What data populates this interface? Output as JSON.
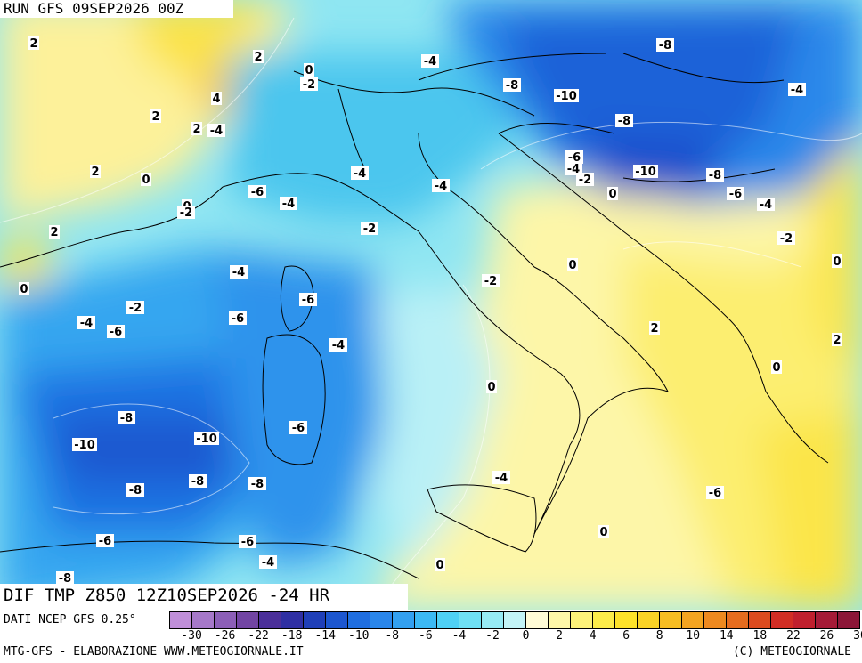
{
  "header": {
    "run_label": "RUN GFS 09SEP2026 00Z"
  },
  "map": {
    "variable_title": "DIF TMP Z850 12Z10SEP2026 -24 HR",
    "source_note": "DATI NCEP GFS 0.25°",
    "contour_labels": [
      "2",
      "2",
      "0",
      "-2",
      "4",
      "2",
      "2",
      "-4",
      "2",
      "0",
      "0",
      "-2",
      "2",
      "0",
      "-4",
      "-8",
      "-10",
      "-8",
      "-8",
      "-4",
      "-6",
      "-4",
      "-2",
      "-10",
      "-8",
      "-6",
      "-4",
      "-2",
      "0",
      "-4",
      "-6",
      "-4",
      "-4",
      "-2",
      "-2",
      "0",
      "0",
      "-4",
      "-6",
      "-2",
      "-6",
      "-4",
      "2",
      "0",
      "2",
      "0",
      "-4",
      "-6",
      "-6",
      "-4",
      "-10",
      "-8",
      "-10",
      "-6",
      "-8",
      "-8",
      "-8",
      "-6",
      "-8",
      "-4",
      "-6",
      "0",
      "0",
      "0",
      "0",
      "0"
    ]
  },
  "legend": {
    "colors": [
      "#c08fd9",
      "#a678c9",
      "#8c5fb7",
      "#7245a3",
      "#4b2f9a",
      "#2f2fa3",
      "#1f3fb8",
      "#1c56cf",
      "#1f6ee0",
      "#2a86ea",
      "#33a0f0",
      "#3cb9f4",
      "#4fd0f5",
      "#6fe0f4",
      "#97eaf4",
      "#c3f3f6",
      "#fffbd6",
      "#fdf6a8",
      "#fdf27a",
      "#fcec4a",
      "#fde22a",
      "#fad326",
      "#f6bd22",
      "#f3a421",
      "#ee891f",
      "#e66c1e",
      "#dc4b1e",
      "#d22d24",
      "#c01f2d",
      "#a51a37",
      "#8c1638"
    ],
    "tick_labels": [
      "-30",
      "-26",
      "-22",
      "-18",
      "-14",
      "-10",
      "-8",
      "-6",
      "-4",
      "-2",
      "0",
      "2",
      "4",
      "6",
      "8",
      "10",
      "14",
      "18",
      "22",
      "26",
      "30"
    ]
  },
  "footer": {
    "left": "MTG-GFS - ELABORAZIONE WWW.METEOGIORNALE.IT",
    "right": "(C) METEOGIORNALE"
  }
}
